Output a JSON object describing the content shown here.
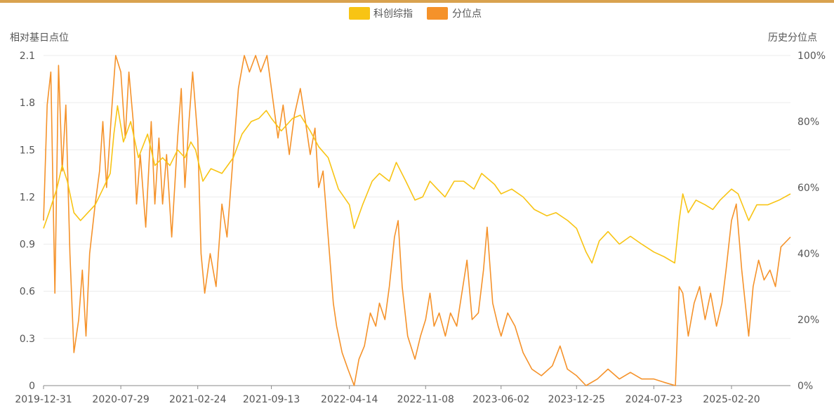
{
  "colors": {
    "index": "#f8c414",
    "percentile": "#f5922a",
    "grid": "#ececec",
    "axis": "#8a8a8a",
    "text": "#555555",
    "topbar": "#d9a24f"
  },
  "chart_data": {
    "type": "line",
    "legend": {
      "placement": "top-center",
      "items": [
        {
          "label": "科创综指",
          "color": "#f8c414"
        },
        {
          "label": "分位点",
          "color": "#f5922a"
        }
      ]
    },
    "grid": true,
    "left_axis": {
      "label": "相对基日点位",
      "range": [
        0,
        2.1
      ],
      "ticks": [
        "0",
        "0.3",
        "0.6",
        "0.9",
        "1.2",
        "1.5",
        "1.8",
        "2.1"
      ]
    },
    "right_axis": {
      "label": "历史分位点",
      "range": [
        0,
        100
      ],
      "ticks": [
        "0%",
        "20%",
        "40%",
        "60%",
        "80%",
        "100%"
      ]
    },
    "x_axis": {
      "type": "date",
      "range": [
        "2019-12-31",
        "2025-07-31"
      ],
      "ticks": [
        "2019-12-31",
        "2020-07-29",
        "2021-02-24",
        "2021-09-13",
        "2022-04-14",
        "2022-11-08",
        "2023-06-02",
        "2023-12-25",
        "2024-07-23",
        "2025-02-20"
      ]
    },
    "series": [
      {
        "name": "科创综指",
        "axis": "left",
        "color": "#f8c414",
        "points": [
          [
            "2019-12-31",
            1.0
          ],
          [
            "2020-01-15",
            1.1
          ],
          [
            "2020-02-05",
            1.25
          ],
          [
            "2020-02-20",
            1.4
          ],
          [
            "2020-03-05",
            1.3
          ],
          [
            "2020-03-23",
            1.1
          ],
          [
            "2020-04-10",
            1.05
          ],
          [
            "2020-04-30",
            1.1
          ],
          [
            "2020-05-20",
            1.15
          ],
          [
            "2020-06-10",
            1.25
          ],
          [
            "2020-06-30",
            1.35
          ],
          [
            "2020-07-10",
            1.6
          ],
          [
            "2020-07-20",
            1.78
          ],
          [
            "2020-08-05",
            1.55
          ],
          [
            "2020-08-25",
            1.68
          ],
          [
            "2020-09-15",
            1.45
          ],
          [
            "2020-10-10",
            1.6
          ],
          [
            "2020-10-30",
            1.4
          ],
          [
            "2020-11-20",
            1.45
          ],
          [
            "2020-12-10",
            1.4
          ],
          [
            "2020-12-31",
            1.5
          ],
          [
            "2021-01-20",
            1.45
          ],
          [
            "2021-02-05",
            1.55
          ],
          [
            "2021-02-18",
            1.5
          ],
          [
            "2021-03-10",
            1.3
          ],
          [
            "2021-04-01",
            1.38
          ],
          [
            "2021-05-01",
            1.35
          ],
          [
            "2021-06-01",
            1.45
          ],
          [
            "2021-06-25",
            1.6
          ],
          [
            "2021-07-20",
            1.68
          ],
          [
            "2021-08-10",
            1.7
          ],
          [
            "2021-08-30",
            1.75
          ],
          [
            "2021-09-13",
            1.7
          ],
          [
            "2021-10-10",
            1.62
          ],
          [
            "2021-11-10",
            1.7
          ],
          [
            "2021-12-01",
            1.72
          ],
          [
            "2021-12-28",
            1.62
          ],
          [
            "2022-01-20",
            1.52
          ],
          [
            "2022-02-15",
            1.45
          ],
          [
            "2022-03-15",
            1.25
          ],
          [
            "2022-04-14",
            1.15
          ],
          [
            "2022-04-27",
            1.0
          ],
          [
            "2022-05-20",
            1.15
          ],
          [
            "2022-06-15",
            1.3
          ],
          [
            "2022-07-05",
            1.35
          ],
          [
            "2022-08-01",
            1.3
          ],
          [
            "2022-08-20",
            1.42
          ],
          [
            "2022-09-15",
            1.3
          ],
          [
            "2022-10-10",
            1.18
          ],
          [
            "2022-10-31",
            1.2
          ],
          [
            "2022-11-20",
            1.3
          ],
          [
            "2022-12-10",
            1.25
          ],
          [
            "2022-12-31",
            1.2
          ],
          [
            "2023-01-25",
            1.3
          ],
          [
            "2023-02-20",
            1.3
          ],
          [
            "2023-03-20",
            1.25
          ],
          [
            "2023-04-10",
            1.35
          ],
          [
            "2023-05-15",
            1.28
          ],
          [
            "2023-06-02",
            1.22
          ],
          [
            "2023-07-01",
            1.25
          ],
          [
            "2023-08-01",
            1.2
          ],
          [
            "2023-09-01",
            1.12
          ],
          [
            "2023-10-05",
            1.08
          ],
          [
            "2023-10-30",
            1.1
          ],
          [
            "2023-12-01",
            1.05
          ],
          [
            "2023-12-25",
            1.0
          ],
          [
            "2024-01-20",
            0.85
          ],
          [
            "2024-02-05",
            0.78
          ],
          [
            "2024-02-25",
            0.92
          ],
          [
            "2024-03-20",
            0.98
          ],
          [
            "2024-04-20",
            0.9
          ],
          [
            "2024-05-20",
            0.95
          ],
          [
            "2024-06-20",
            0.9
          ],
          [
            "2024-07-23",
            0.85
          ],
          [
            "2024-08-20",
            0.82
          ],
          [
            "2024-09-18",
            0.78
          ],
          [
            "2024-09-30",
            1.05
          ],
          [
            "2024-10-10",
            1.22
          ],
          [
            "2024-10-25",
            1.1
          ],
          [
            "2024-11-15",
            1.18
          ],
          [
            "2024-12-10",
            1.15
          ],
          [
            "2024-12-31",
            1.12
          ],
          [
            "2025-01-20",
            1.18
          ],
          [
            "2025-02-20",
            1.25
          ],
          [
            "2025-03-10",
            1.22
          ],
          [
            "2025-04-08",
            1.05
          ],
          [
            "2025-04-30",
            1.15
          ],
          [
            "2025-05-30",
            1.15
          ],
          [
            "2025-06-30",
            1.18
          ],
          [
            "2025-07-31",
            1.22
          ]
        ]
      },
      {
        "name": "分位点",
        "axis": "right",
        "color": "#f5922a",
        "points": [
          [
            "2019-12-31",
            50
          ],
          [
            "2020-01-10",
            85
          ],
          [
            "2020-01-20",
            95
          ],
          [
            "2020-01-31",
            28
          ],
          [
            "2020-02-10",
            97
          ],
          [
            "2020-02-20",
            65
          ],
          [
            "2020-03-01",
            85
          ],
          [
            "2020-03-12",
            40
          ],
          [
            "2020-03-23",
            10
          ],
          [
            "2020-04-05",
            20
          ],
          [
            "2020-04-15",
            35
          ],
          [
            "2020-04-25",
            15
          ],
          [
            "2020-05-05",
            40
          ],
          [
            "2020-05-20",
            55
          ],
          [
            "2020-06-01",
            65
          ],
          [
            "2020-06-10",
            80
          ],
          [
            "2020-06-20",
            60
          ],
          [
            "2020-07-05",
            85
          ],
          [
            "2020-07-15",
            100
          ],
          [
            "2020-07-29",
            95
          ],
          [
            "2020-08-10",
            75
          ],
          [
            "2020-08-20",
            95
          ],
          [
            "2020-09-01",
            80
          ],
          [
            "2020-09-10",
            55
          ],
          [
            "2020-09-20",
            70
          ],
          [
            "2020-10-05",
            48
          ],
          [
            "2020-10-20",
            80
          ],
          [
            "2020-10-30",
            55
          ],
          [
            "2020-11-10",
            75
          ],
          [
            "2020-11-20",
            55
          ],
          [
            "2020-12-01",
            70
          ],
          [
            "2020-12-15",
            45
          ],
          [
            "2020-12-31",
            75
          ],
          [
            "2021-01-10",
            90
          ],
          [
            "2021-01-20",
            60
          ],
          [
            "2021-01-31",
            80
          ],
          [
            "2021-02-10",
            95
          ],
          [
            "2021-02-24",
            75
          ],
          [
            "2021-03-05",
            40
          ],
          [
            "2021-03-15",
            28
          ],
          [
            "2021-03-30",
            40
          ],
          [
            "2021-04-15",
            30
          ],
          [
            "2021-05-01",
            55
          ],
          [
            "2021-05-15",
            45
          ],
          [
            "2021-06-01",
            70
          ],
          [
            "2021-06-15",
            90
          ],
          [
            "2021-07-01",
            100
          ],
          [
            "2021-07-15",
            95
          ],
          [
            "2021-08-01",
            100
          ],
          [
            "2021-08-15",
            95
          ],
          [
            "2021-09-01",
            100
          ],
          [
            "2021-09-13",
            90
          ],
          [
            "2021-10-01",
            75
          ],
          [
            "2021-10-15",
            85
          ],
          [
            "2021-11-01",
            70
          ],
          [
            "2021-11-15",
            82
          ],
          [
            "2021-12-01",
            90
          ],
          [
            "2021-12-15",
            80
          ],
          [
            "2021-12-28",
            70
          ],
          [
            "2022-01-10",
            78
          ],
          [
            "2022-01-20",
            60
          ],
          [
            "2022-02-01",
            65
          ],
          [
            "2022-02-15",
            45
          ],
          [
            "2022-03-01",
            25
          ],
          [
            "2022-03-10",
            18
          ],
          [
            "2022-03-25",
            10
          ],
          [
            "2022-04-10",
            5
          ],
          [
            "2022-04-27",
            0
          ],
          [
            "2022-05-10",
            8
          ],
          [
            "2022-05-25",
            12
          ],
          [
            "2022-06-10",
            22
          ],
          [
            "2022-06-25",
            18
          ],
          [
            "2022-07-05",
            25
          ],
          [
            "2022-07-20",
            20
          ],
          [
            "2022-08-01",
            30
          ],
          [
            "2022-08-15",
            45
          ],
          [
            "2022-08-25",
            50
          ],
          [
            "2022-09-05",
            30
          ],
          [
            "2022-09-20",
            15
          ],
          [
            "2022-10-10",
            8
          ],
          [
            "2022-10-25",
            15
          ],
          [
            "2022-11-08",
            20
          ],
          [
            "2022-11-20",
            28
          ],
          [
            "2022-12-01",
            18
          ],
          [
            "2022-12-15",
            22
          ],
          [
            "2023-01-01",
            15
          ],
          [
            "2023-01-15",
            22
          ],
          [
            "2023-02-01",
            18
          ],
          [
            "2023-02-15",
            28
          ],
          [
            "2023-03-01",
            38
          ],
          [
            "2023-03-15",
            20
          ],
          [
            "2023-04-01",
            22
          ],
          [
            "2023-04-15",
            35
          ],
          [
            "2023-04-25",
            48
          ],
          [
            "2023-05-10",
            25
          ],
          [
            "2023-05-25",
            18
          ],
          [
            "2023-06-02",
            15
          ],
          [
            "2023-06-20",
            22
          ],
          [
            "2023-07-10",
            18
          ],
          [
            "2023-08-01",
            10
          ],
          [
            "2023-08-25",
            5
          ],
          [
            "2023-09-20",
            3
          ],
          [
            "2023-10-20",
            6
          ],
          [
            "2023-11-10",
            12
          ],
          [
            "2023-11-30",
            5
          ],
          [
            "2023-12-25",
            3
          ],
          [
            "2024-01-20",
            0
          ],
          [
            "2024-02-20",
            2
          ],
          [
            "2024-03-20",
            5
          ],
          [
            "2024-04-20",
            2
          ],
          [
            "2024-05-20",
            4
          ],
          [
            "2024-06-20",
            2
          ],
          [
            "2024-07-23",
            2
          ],
          [
            "2024-08-20",
            1
          ],
          [
            "2024-09-20",
            0
          ],
          [
            "2024-09-30",
            30
          ],
          [
            "2024-10-10",
            28
          ],
          [
            "2024-10-25",
            15
          ],
          [
            "2024-11-10",
            25
          ],
          [
            "2024-11-25",
            30
          ],
          [
            "2024-12-10",
            20
          ],
          [
            "2024-12-25",
            28
          ],
          [
            "2025-01-10",
            18
          ],
          [
            "2025-01-25",
            25
          ],
          [
            "2025-02-05",
            35
          ],
          [
            "2025-02-20",
            50
          ],
          [
            "2025-03-05",
            55
          ],
          [
            "2025-03-20",
            35
          ],
          [
            "2025-04-08",
            15
          ],
          [
            "2025-04-20",
            30
          ],
          [
            "2025-05-05",
            38
          ],
          [
            "2025-05-20",
            32
          ],
          [
            "2025-06-05",
            35
          ],
          [
            "2025-06-20",
            30
          ],
          [
            "2025-07-05",
            42
          ],
          [
            "2025-07-31",
            45
          ]
        ]
      }
    ]
  }
}
